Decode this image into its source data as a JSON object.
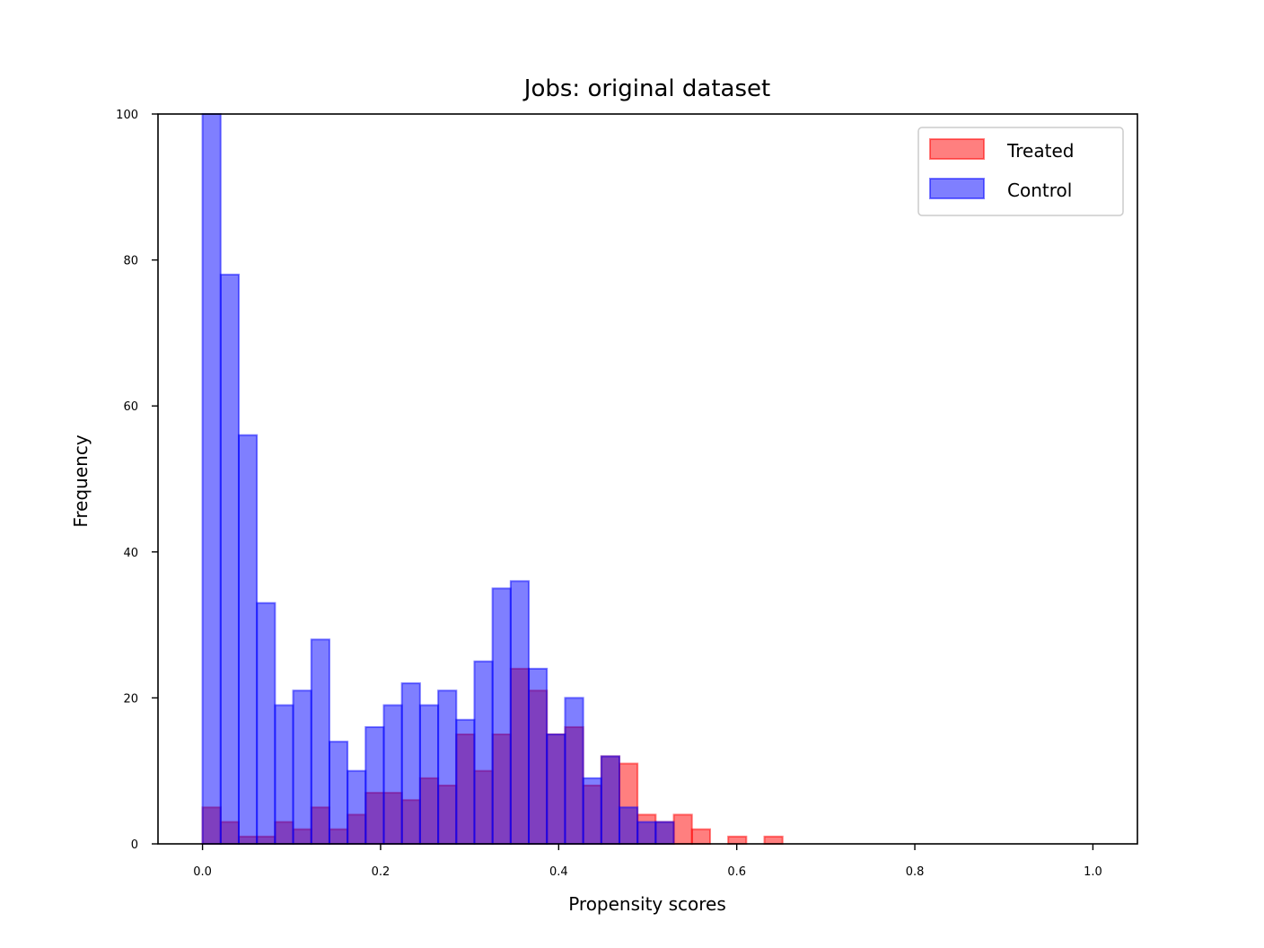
{
  "chart_data": {
    "type": "bar",
    "title": "Jobs: original dataset",
    "xlabel": "Propensity scores",
    "ylabel": "Frequency",
    "xlim": [
      -0.05,
      1.05
    ],
    "ylim": [
      0,
      100
    ],
    "x_ticks": [
      0.0,
      0.2,
      0.4,
      0.6,
      0.8,
      1.0
    ],
    "x_tick_labels": [
      "0.0",
      "0.2",
      "0.4",
      "0.6",
      "0.8",
      "1.0"
    ],
    "y_ticks": [
      0,
      20,
      40,
      60,
      80,
      100
    ],
    "y_tick_labels": [
      "0",
      "20",
      "40",
      "60",
      "80",
      "100"
    ],
    "bin_width": 0.02035,
    "legend_position": "top-right",
    "legend": [
      "Treated",
      "Control"
    ],
    "series": [
      {
        "name": "Treated",
        "color": "#ff0000",
        "bin_starts": [
          0.0,
          0.0204,
          0.0407,
          0.0611,
          0.0814,
          0.1018,
          0.1222,
          0.1425,
          0.1629,
          0.1832,
          0.2036,
          0.2239,
          0.2443,
          0.2647,
          0.285,
          0.3054,
          0.3257,
          0.3461,
          0.3664,
          0.3868,
          0.4072,
          0.4275,
          0.4479,
          0.4682,
          0.4886,
          0.5089,
          0.5293,
          0.5497,
          0.5904,
          0.6311
        ],
        "values": [
          5,
          3,
          1,
          1,
          3,
          2,
          5,
          2,
          4,
          7,
          7,
          6,
          9,
          8,
          15,
          10,
          15,
          24,
          21,
          15,
          16,
          8,
          12,
          11,
          4,
          3,
          4,
          2,
          1,
          1
        ]
      },
      {
        "name": "Control",
        "color": "#0000ff",
        "bin_starts": [
          0.0,
          0.0204,
          0.0407,
          0.0611,
          0.0814,
          0.1018,
          0.1222,
          0.1425,
          0.1629,
          0.1832,
          0.2036,
          0.2239,
          0.2443,
          0.2647,
          0.285,
          0.3054,
          0.3257,
          0.3461,
          0.3664,
          0.3868,
          0.4072,
          0.4275,
          0.4479,
          0.4682,
          0.4886,
          0.5089
        ],
        "values": [
          100,
          78,
          56,
          33,
          19,
          21,
          28,
          14,
          10,
          16,
          19,
          22,
          19,
          21,
          17,
          25,
          35,
          36,
          24,
          15,
          20,
          9,
          12,
          5,
          3,
          3
        ]
      }
    ]
  }
}
